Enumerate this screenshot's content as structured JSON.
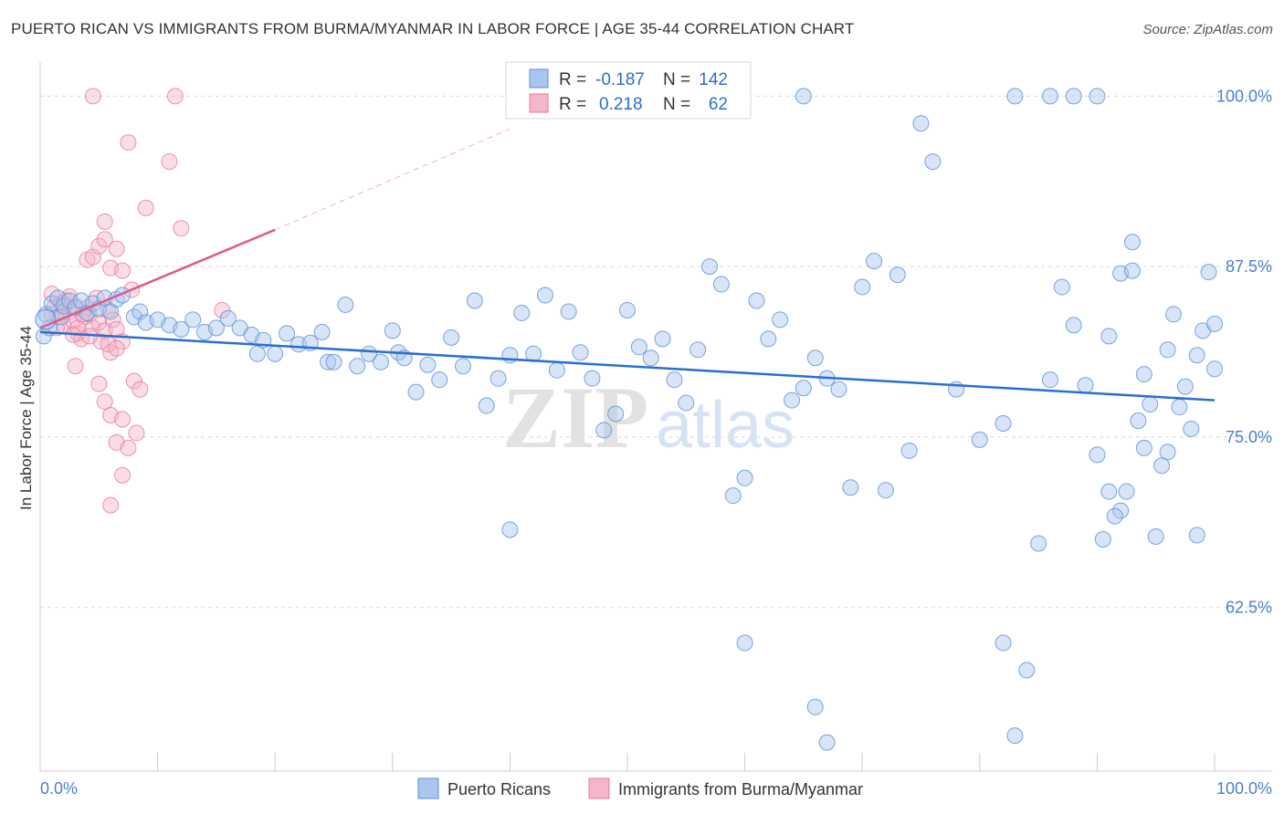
{
  "title": "PUERTO RICAN VS IMMIGRANTS FROM BURMA/MYANMAR IN LABOR FORCE | AGE 35-44 CORRELATION CHART",
  "source": "Source: ZipAtlas.com",
  "watermark": {
    "zip": "ZIP",
    "atlas": "atlas"
  },
  "colors": {
    "blue_fill": "#a9c6ee",
    "blue_stroke": "#5b8fd6",
    "blue_line": "#2a6fcf",
    "pink_fill": "#f4b6c8",
    "pink_stroke": "#e8799b",
    "pink_line": "#e0588a",
    "grid": "#d9d9d9",
    "tick_text": "#4a7fcf"
  },
  "chart_data": {
    "type": "scatter",
    "title": "PUERTO RICAN VS IMMIGRANTS FROM BURMA/MYANMAR IN LABOR FORCE | AGE 35-44 CORRELATION CHART",
    "xlabel": "",
    "ylabel": "In Labor Force | Age 35-44",
    "xlim": [
      0,
      100
    ],
    "ylim": [
      50.5,
      102.5
    ],
    "x_tick_labels": [
      "0.0%",
      "100.0%"
    ],
    "y_ticks": [
      62.5,
      75.0,
      87.5,
      100.0
    ],
    "y_tick_labels": [
      "62.5%",
      "75.0%",
      "87.5%",
      "100.0%"
    ],
    "legend": {
      "r_label": "R =",
      "n_label": "N =",
      "entries": [
        {
          "r": "-0.187",
          "n": "142"
        },
        {
          "r": "0.218",
          "n": "62"
        }
      ]
    },
    "series": [
      {
        "name": "Puerto Ricans",
        "trend": {
          "x0": 0,
          "y0": 82.7,
          "x1": 100,
          "y1": 77.7
        },
        "points": [
          [
            0.3,
            82.4
          ],
          [
            0.5,
            84.0
          ],
          [
            0.8,
            83.0
          ],
          [
            1.0,
            84.8
          ],
          [
            1.5,
            85.2
          ],
          [
            1.8,
            83.8
          ],
          [
            2.0,
            84.6
          ],
          [
            2.5,
            85.0
          ],
          [
            3.0,
            84.5
          ],
          [
            3.5,
            85.0
          ],
          [
            4.0,
            84.1
          ],
          [
            4.5,
            84.8
          ],
          [
            5.0,
            84.4
          ],
          [
            5.5,
            85.2
          ],
          [
            6.0,
            84.2
          ],
          [
            6.5,
            85.1
          ],
          [
            7.0,
            85.4
          ],
          [
            8.0,
            83.8
          ],
          [
            8.5,
            84.2
          ],
          [
            9.0,
            83.4
          ],
          [
            10.0,
            83.6
          ],
          [
            11.0,
            83.2
          ],
          [
            12.0,
            82.9
          ],
          [
            13.0,
            83.6
          ],
          [
            14.0,
            82.7
          ],
          [
            15.0,
            83.0
          ],
          [
            16.0,
            83.7
          ],
          [
            17.0,
            83.0
          ],
          [
            18.0,
            82.5
          ],
          [
            18.5,
            81.1
          ],
          [
            19.0,
            82.1
          ],
          [
            20.0,
            81.1
          ],
          [
            21.0,
            82.6
          ],
          [
            22.0,
            81.8
          ],
          [
            23.0,
            81.9
          ],
          [
            24.0,
            82.7
          ],
          [
            24.5,
            80.5
          ],
          [
            25.0,
            80.5
          ],
          [
            26.0,
            84.7
          ],
          [
            27.0,
            80.2
          ],
          [
            28.0,
            81.1
          ],
          [
            29.0,
            80.5
          ],
          [
            30.0,
            82.8
          ],
          [
            30.5,
            81.2
          ],
          [
            31.0,
            80.8
          ],
          [
            32.0,
            78.3
          ],
          [
            33.0,
            80.3
          ],
          [
            34.0,
            79.2
          ],
          [
            35.0,
            82.3
          ],
          [
            36.0,
            80.2
          ],
          [
            37.0,
            85.0
          ],
          [
            38.0,
            77.3
          ],
          [
            39.0,
            79.3
          ],
          [
            40.0,
            81.0
          ],
          [
            41.0,
            84.1
          ],
          [
            42.0,
            81.1
          ],
          [
            43.0,
            85.4
          ],
          [
            44.0,
            79.9
          ],
          [
            45.0,
            84.2
          ],
          [
            46.0,
            81.2
          ],
          [
            47.0,
            79.3
          ],
          [
            48.0,
            75.5
          ],
          [
            49.0,
            76.7
          ],
          [
            50.0,
            84.3
          ],
          [
            51.0,
            81.6
          ],
          [
            52.0,
            80.8
          ],
          [
            53.0,
            82.2
          ],
          [
            54.0,
            79.2
          ],
          [
            55.0,
            77.5
          ],
          [
            56.0,
            81.4
          ],
          [
            57.0,
            87.5
          ],
          [
            58.0,
            86.2
          ],
          [
            59.0,
            70.7
          ],
          [
            60.0,
            72.0
          ],
          [
            61.0,
            85.0
          ],
          [
            62.0,
            82.2
          ],
          [
            63.0,
            83.6
          ],
          [
            64.0,
            77.7
          ],
          [
            65.0,
            78.6
          ],
          [
            66.0,
            80.8
          ],
          [
            67.0,
            79.3
          ],
          [
            68.0,
            78.5
          ],
          [
            69.0,
            71.3
          ],
          [
            70.0,
            86.0
          ],
          [
            71.0,
            87.9
          ],
          [
            72.0,
            71.1
          ],
          [
            73.0,
            86.9
          ],
          [
            74.0,
            74.0
          ],
          [
            75.0,
            98.0
          ],
          [
            76.0,
            95.2
          ],
          [
            78.0,
            78.5
          ],
          [
            80.0,
            74.8
          ],
          [
            82.0,
            76.0
          ],
          [
            85.0,
            67.2
          ],
          [
            86.0,
            79.2
          ],
          [
            87.0,
            86.0
          ],
          [
            88.0,
            83.2
          ],
          [
            89.0,
            78.8
          ],
          [
            90.0,
            73.7
          ],
          [
            91.0,
            82.4
          ],
          [
            92.0,
            87.0
          ],
          [
            93.0,
            89.3
          ],
          [
            94.0,
            74.2
          ],
          [
            95.0,
            67.7
          ],
          [
            96.0,
            81.4
          ],
          [
            97.0,
            77.2
          ],
          [
            98.0,
            75.6
          ],
          [
            99.0,
            82.8
          ],
          [
            99.5,
            87.1
          ],
          [
            100,
            80.0
          ],
          [
            100,
            83.3
          ],
          [
            98.5,
            81.0
          ],
          [
            98.5,
            67.8
          ],
          [
            97.5,
            78.7
          ],
          [
            96.5,
            84.0
          ],
          [
            96.0,
            73.9
          ],
          [
            95.5,
            72.9
          ],
          [
            94.5,
            77.4
          ],
          [
            94.0,
            79.6
          ],
          [
            93.5,
            76.2
          ],
          [
            93.0,
            87.2
          ],
          [
            92.5,
            71.0
          ],
          [
            92.0,
            69.6
          ],
          [
            91.5,
            69.2
          ],
          [
            91.0,
            71.0
          ],
          [
            90.5,
            67.5
          ],
          [
            60.0,
            59.9
          ],
          [
            66.0,
            55.2
          ],
          [
            67.0,
            52.6
          ],
          [
            82.0,
            59.9
          ],
          [
            84.0,
            57.9
          ],
          [
            83.0,
            53.1
          ],
          [
            40.0,
            68.2
          ],
          [
            65.0,
            100.0
          ],
          [
            83.0,
            100.0
          ],
          [
            86.0,
            100.0
          ],
          [
            88.0,
            100.0
          ],
          [
            90.0,
            100.0
          ]
        ],
        "pixel_points": "see script"
      },
      {
        "name": "Immigrants from Burma/Myanmar",
        "trend": {
          "x0": 0,
          "y0": 83.0,
          "x1": 20,
          "y1": 90.2,
          "dash_to_x": 40,
          "dash_to_y": 97.6
        },
        "points": []
      }
    ]
  },
  "bottom_legend": [
    "Puerto Ricans",
    "Immigrants from Burma/Myanmar"
  ]
}
